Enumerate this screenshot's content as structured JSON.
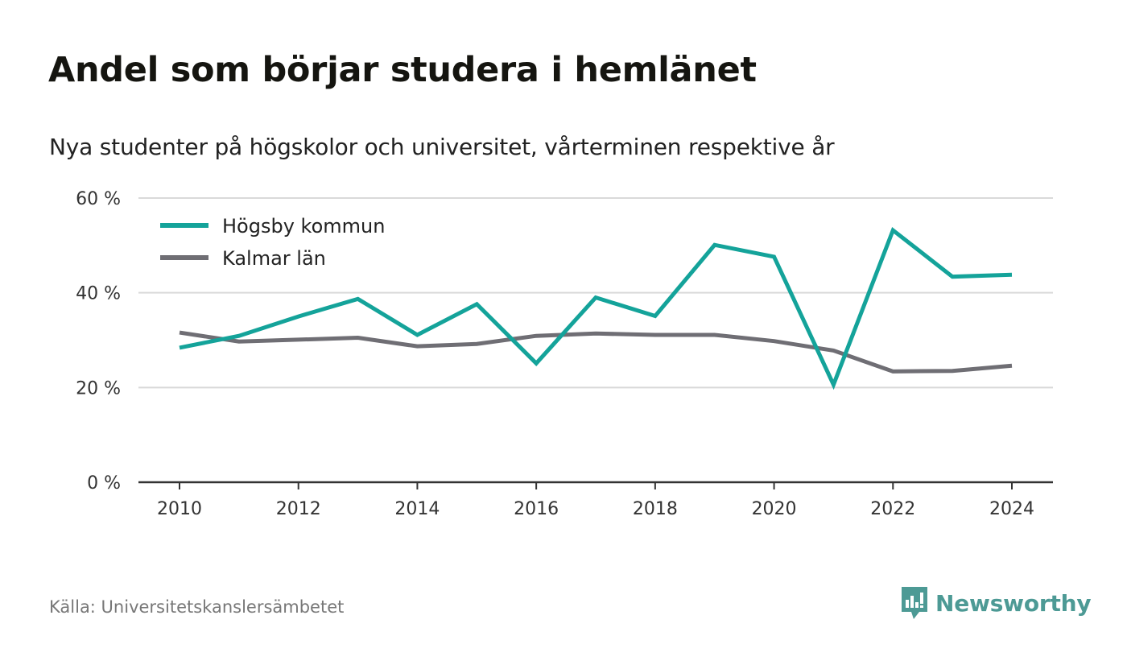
{
  "title": "Andel som börjar studera i hemlänet",
  "subtitle": "Nya studenter på högskolor och universitet, vårterminen respektive år",
  "source": "Källa: Universitetskanslersämbetet",
  "brand": {
    "name": "Newsworthy",
    "color": "#4d9a95",
    "icon": "newsworthy-logo-icon"
  },
  "chart_data": {
    "type": "line",
    "x": [
      2010,
      2011,
      2012,
      2013,
      2014,
      2015,
      2016,
      2017,
      2018,
      2019,
      2020,
      2021,
      2022,
      2023,
      2024
    ],
    "series": [
      {
        "name": "Högsby kommun",
        "color": "#14a39a",
        "values": [
          28.4,
          30.9,
          35.0,
          38.7,
          31.1,
          37.6,
          25.1,
          39.0,
          35.1,
          50.1,
          47.6,
          20.6,
          53.2,
          43.4,
          43.8
        ]
      },
      {
        "name": "Kalmar län",
        "color": "#6f6e74",
        "values": [
          31.6,
          29.7,
          30.1,
          30.5,
          28.7,
          29.2,
          30.9,
          31.4,
          31.1,
          31.1,
          29.8,
          27.8,
          23.4,
          23.5,
          24.6
        ]
      }
    ],
    "xticks": [
      2010,
      2012,
      2014,
      2016,
      2018,
      2020,
      2022,
      2024
    ],
    "yticks": [
      {
        "value": 0,
        "label": "0 %"
      },
      {
        "value": 20,
        "label": "20 %"
      },
      {
        "value": 40,
        "label": "40 %"
      },
      {
        "value": 60,
        "label": "60 %"
      }
    ],
    "ylim": [
      0,
      60
    ],
    "xlim": [
      2010,
      2024
    ],
    "grid": true,
    "legend": "top-left"
  }
}
